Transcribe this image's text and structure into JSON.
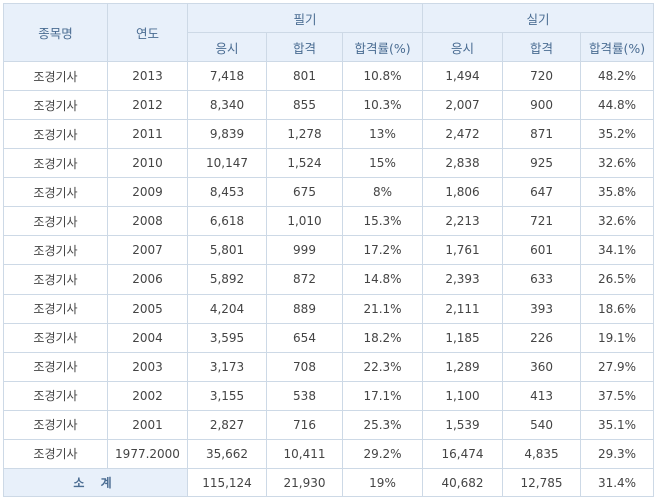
{
  "header": {
    "subject_name": "종목명",
    "year": "연도",
    "written_group": "필기",
    "practical_group": "실기",
    "applicants": "응시",
    "passed": "합격",
    "pass_rate": "합격률(%)"
  },
  "rows": [
    {
      "name": "조경기사",
      "year": "2013",
      "w_apply": "7,418",
      "w_pass": "801",
      "w_rate": "10.8%",
      "p_apply": "1,494",
      "p_pass": "720",
      "p_rate": "48.2%"
    },
    {
      "name": "조경기사",
      "year": "2012",
      "w_apply": "8,340",
      "w_pass": "855",
      "w_rate": "10.3%",
      "p_apply": "2,007",
      "p_pass": "900",
      "p_rate": "44.8%"
    },
    {
      "name": "조경기사",
      "year": "2011",
      "w_apply": "9,839",
      "w_pass": "1,278",
      "w_rate": "13%",
      "p_apply": "2,472",
      "p_pass": "871",
      "p_rate": "35.2%"
    },
    {
      "name": "조경기사",
      "year": "2010",
      "w_apply": "10,147",
      "w_pass": "1,524",
      "w_rate": "15%",
      "p_apply": "2,838",
      "p_pass": "925",
      "p_rate": "32.6%"
    },
    {
      "name": "조경기사",
      "year": "2009",
      "w_apply": "8,453",
      "w_pass": "675",
      "w_rate": "8%",
      "p_apply": "1,806",
      "p_pass": "647",
      "p_rate": "35.8%"
    },
    {
      "name": "조경기사",
      "year": "2008",
      "w_apply": "6,618",
      "w_pass": "1,010",
      "w_rate": "15.3%",
      "p_apply": "2,213",
      "p_pass": "721",
      "p_rate": "32.6%"
    },
    {
      "name": "조경기사",
      "year": "2007",
      "w_apply": "5,801",
      "w_pass": "999",
      "w_rate": "17.2%",
      "p_apply": "1,761",
      "p_pass": "601",
      "p_rate": "34.1%"
    },
    {
      "name": "조경기사",
      "year": "2006",
      "w_apply": "5,892",
      "w_pass": "872",
      "w_rate": "14.8%",
      "p_apply": "2,393",
      "p_pass": "633",
      "p_rate": "26.5%"
    },
    {
      "name": "조경기사",
      "year": "2005",
      "w_apply": "4,204",
      "w_pass": "889",
      "w_rate": "21.1%",
      "p_apply": "2,111",
      "p_pass": "393",
      "p_rate": "18.6%"
    },
    {
      "name": "조경기사",
      "year": "2004",
      "w_apply": "3,595",
      "w_pass": "654",
      "w_rate": "18.2%",
      "p_apply": "1,185",
      "p_pass": "226",
      "p_rate": "19.1%"
    },
    {
      "name": "조경기사",
      "year": "2003",
      "w_apply": "3,173",
      "w_pass": "708",
      "w_rate": "22.3%",
      "p_apply": "1,289",
      "p_pass": "360",
      "p_rate": "27.9%"
    },
    {
      "name": "조경기사",
      "year": "2002",
      "w_apply": "3,155",
      "w_pass": "538",
      "w_rate": "17.1%",
      "p_apply": "1,100",
      "p_pass": "413",
      "p_rate": "37.5%"
    },
    {
      "name": "조경기사",
      "year": "2001",
      "w_apply": "2,827",
      "w_pass": "716",
      "w_rate": "25.3%",
      "p_apply": "1,539",
      "p_pass": "540",
      "p_rate": "35.1%"
    },
    {
      "name": "조경기사",
      "year": "1977.2000",
      "w_apply": "35,662",
      "w_pass": "10,411",
      "w_rate": "29.2%",
      "p_apply": "16,474",
      "p_pass": "4,835",
      "p_rate": "29.3%"
    }
  ],
  "total": {
    "label": "소 계",
    "w_apply": "115,124",
    "w_pass": "21,930",
    "w_rate": "19%",
    "p_apply": "40,682",
    "p_pass": "12,785",
    "p_rate": "31.4%"
  },
  "colors": {
    "header_bg": "#e8f0fa",
    "header_text": "#4a6c92",
    "border": "#cdd9e6",
    "body_text": "#444444"
  }
}
